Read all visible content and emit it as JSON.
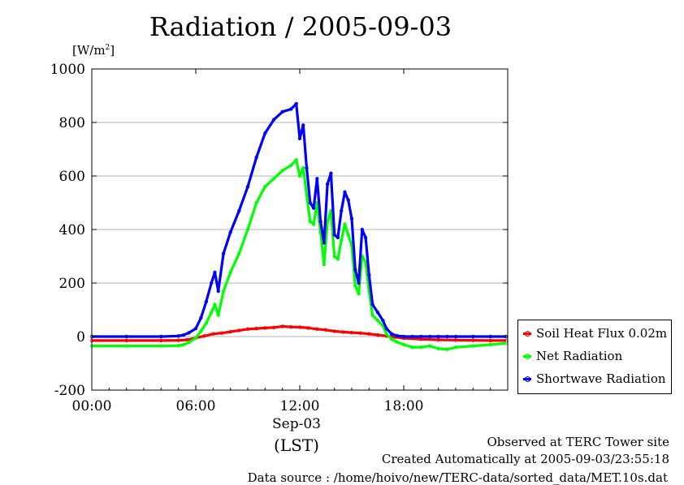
{
  "title": "Radiation / 2005-09-03",
  "y_unit_base": "[W/m",
  "y_unit_sup": "2",
  "y_unit_close": "]",
  "date_label": "Sep-03",
  "timezone_label": "(LST)",
  "footer": {
    "line1": "Observed at TERC Tower site",
    "line2": "Created Automatically at 2005-09-03/23:55:18",
    "line3": "Data source : /home/hoivo/new/TERC-data/sorted_data/MET.10s.dat"
  },
  "chart_data": {
    "type": "line",
    "title": "Radiation / 2005-09-03",
    "xlabel": "(LST)",
    "ylabel": "[W/m2]",
    "xlim": [
      0,
      24
    ],
    "ylim": [
      -200,
      1000
    ],
    "x_ticks": [
      {
        "value": 0,
        "label": "00:00"
      },
      {
        "value": 6,
        "label": "06:00"
      },
      {
        "value": 12,
        "label": "12:00"
      },
      {
        "value": 18,
        "label": "18:00"
      }
    ],
    "y_ticks": [
      {
        "value": 1000,
        "label": "1000"
      },
      {
        "value": 800,
        "label": "800"
      },
      {
        "value": 600,
        "label": "600"
      },
      {
        "value": 400,
        "label": "400"
      },
      {
        "value": 200,
        "label": "200"
      },
      {
        "value": 0,
        "label": "0"
      },
      {
        "value": -200,
        "label": "-200"
      }
    ],
    "grid": true,
    "legend_position": "bottom-right",
    "series": [
      {
        "name": "Soil Heat Flux 0.02m",
        "color": "#ff0000",
        "x": [
          0,
          2,
          4,
          5,
          5.5,
          6,
          6.5,
          7,
          7.5,
          8,
          8.5,
          9,
          9.5,
          10,
          10.5,
          11,
          11.5,
          12,
          12.5,
          13,
          13.5,
          14,
          14.5,
          15,
          15.5,
          16,
          16.5,
          17,
          17.5,
          18,
          19,
          20,
          21,
          22,
          23,
          23.9
        ],
        "y": [
          -15,
          -15,
          -15,
          -14,
          -12,
          -5,
          2,
          10,
          13,
          18,
          23,
          28,
          30,
          32,
          34,
          38,
          36,
          35,
          32,
          28,
          25,
          20,
          17,
          15,
          13,
          10,
          6,
          2,
          -2,
          -6,
          -10,
          -12,
          -13,
          -14,
          -15,
          -15
        ]
      },
      {
        "name": "Net Radiation",
        "color": "#00ff00",
        "x": [
          0,
          2,
          4,
          5,
          5.3,
          5.6,
          6,
          6.3,
          6.6,
          6.9,
          7.1,
          7.3,
          7.6,
          8,
          8.5,
          9,
          9.5,
          10,
          10.5,
          11,
          11.5,
          11.8,
          12,
          12.2,
          12.4,
          12.6,
          12.8,
          13,
          13.2,
          13.4,
          13.6,
          13.8,
          14,
          14.2,
          14.4,
          14.6,
          14.8,
          15,
          15.2,
          15.4,
          15.6,
          15.8,
          16,
          16.2,
          16.5,
          16.8,
          17,
          17.3,
          17.6,
          18,
          18.5,
          19,
          19.5,
          20,
          20.5,
          21,
          22,
          23,
          23.9
        ],
        "y": [
          -35,
          -35,
          -35,
          -34,
          -30,
          -22,
          -5,
          20,
          50,
          90,
          120,
          80,
          170,
          240,
          310,
          400,
          500,
          560,
          590,
          620,
          640,
          660,
          600,
          630,
          530,
          430,
          420,
          500,
          390,
          270,
          430,
          470,
          300,
          290,
          360,
          420,
          380,
          340,
          190,
          160,
          300,
          280,
          170,
          80,
          60,
          40,
          10,
          -10,
          -20,
          -30,
          -40,
          -40,
          -35,
          -45,
          -48,
          -40,
          -35,
          -30,
          -25
        ]
      },
      {
        "name": "Shortwave Radiation",
        "color": "#0000ff",
        "x": [
          0,
          2,
          4,
          5,
          5.3,
          5.6,
          6,
          6.3,
          6.6,
          6.9,
          7.1,
          7.3,
          7.6,
          8,
          8.5,
          9,
          9.5,
          10,
          10.5,
          11,
          11.5,
          11.8,
          12,
          12.2,
          12.4,
          12.6,
          12.8,
          13,
          13.2,
          13.4,
          13.6,
          13.8,
          14,
          14.2,
          14.4,
          14.6,
          14.8,
          15,
          15.2,
          15.4,
          15.6,
          15.8,
          16,
          16.2,
          16.5,
          16.8,
          17,
          17.3,
          17.6,
          18,
          18.5,
          19,
          19.5,
          20,
          20.5,
          21,
          22,
          23,
          23.9
        ],
        "y": [
          0,
          0,
          0,
          2,
          6,
          14,
          30,
          70,
          130,
          200,
          240,
          170,
          310,
          390,
          470,
          560,
          670,
          760,
          810,
          840,
          850,
          870,
          740,
          790,
          630,
          500,
          480,
          590,
          430,
          350,
          570,
          610,
          380,
          370,
          470,
          540,
          510,
          440,
          250,
          200,
          400,
          370,
          230,
          120,
          90,
          60,
          30,
          10,
          3,
          0,
          0,
          0,
          0,
          0,
          0,
          0,
          0,
          0,
          0
        ]
      }
    ]
  }
}
